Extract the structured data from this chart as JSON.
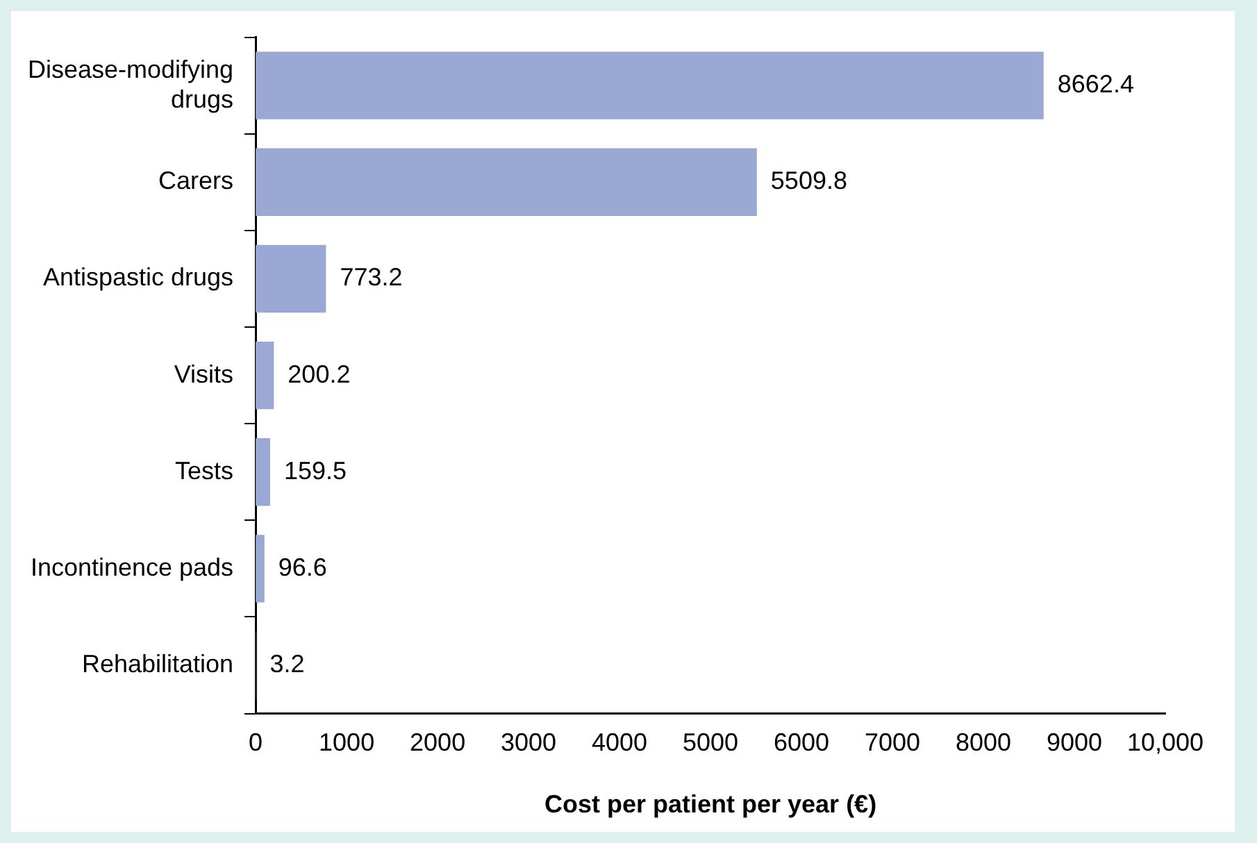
{
  "chart_data": {
    "type": "bar",
    "orientation": "horizontal",
    "xlabel": "Cost per patient per year (€)",
    "categories": [
      "Disease-modifying drugs",
      "Carers",
      "Antispastic drugs",
      "Visits",
      "Tests",
      "Incontinence pads",
      "Rehabilitation"
    ],
    "values": [
      8662.4,
      5509.8,
      773.2,
      200.2,
      159.5,
      96.6,
      3.2
    ],
    "color": "#9aa8d4",
    "xlim": [
      0,
      10000
    ],
    "xticks": [
      0,
      1000,
      2000,
      3000,
      4000,
      5000,
      6000,
      7000,
      8000,
      9000,
      {
        "value": 10000,
        "label": "10,000"
      }
    ],
    "data_labels": true,
    "grid": false,
    "legend": false
  }
}
